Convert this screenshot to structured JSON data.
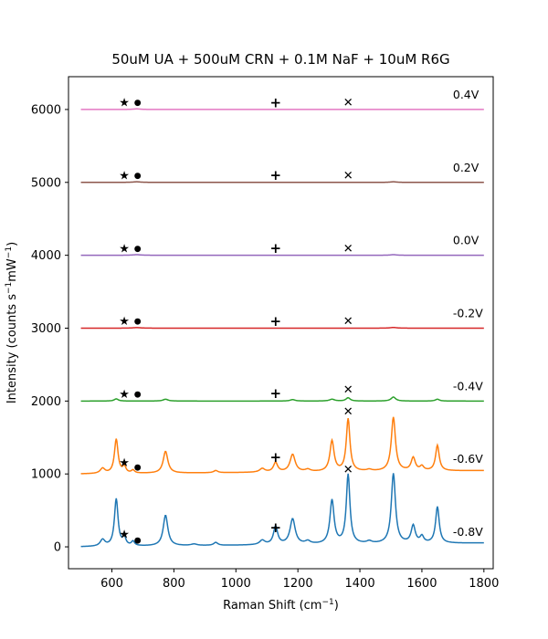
{
  "chart_data": {
    "type": "line",
    "title": "50uM UA + 500uM CRN + 0.1M NaF + 10uM R6G",
    "xlabel": "Raman Shift (cm",
    "xlabel_sup": "−1",
    "xlabel_suffix": ")",
    "ylabel": "Intensity (counts s",
    "ylabel_sup1": "−1",
    "ylabel_mid": "mW",
    "ylabel_sup2": "−1",
    "ylabel_suffix": ")",
    "xlim": [
      460,
      1830
    ],
    "ylim": [
      -300,
      6450
    ],
    "xticks": [
      600,
      800,
      1000,
      1200,
      1400,
      1600,
      1800
    ],
    "yticks": [
      0,
      1000,
      2000,
      3000,
      4000,
      5000,
      6000
    ],
    "grid": false,
    "x_range": [
      500,
      1800
    ],
    "series": [
      {
        "name": "-0.8V",
        "color": "#1f77b4",
        "offset": 0,
        "baseline_slope": 0.04,
        "peaks": [
          [
            570,
            90,
            9
          ],
          [
            614,
            650,
            7
          ],
          [
            640,
            110,
            6
          ],
          [
            668,
            60,
            6
          ],
          [
            773,
            420,
            9
          ],
          [
            865,
            20,
            12
          ],
          [
            935,
            40,
            8
          ],
          [
            1085,
            60,
            10
          ],
          [
            1128,
            250,
            8
          ],
          [
            1183,
            350,
            10
          ],
          [
            1232,
            40,
            10
          ],
          [
            1310,
            600,
            8
          ],
          [
            1362,
            950,
            7
          ],
          [
            1430,
            30,
            10
          ],
          [
            1508,
            960,
            8
          ],
          [
            1572,
            240,
            8
          ],
          [
            1600,
            90,
            7
          ],
          [
            1650,
            500,
            7
          ]
        ]
      },
      {
        "name": "-0.6V",
        "color": "#ff7f0e",
        "offset": 1000,
        "baseline_slope": 0.035,
        "peaks": [
          [
            570,
            70,
            9
          ],
          [
            614,
            470,
            7
          ],
          [
            640,
            90,
            6
          ],
          [
            668,
            40,
            6
          ],
          [
            773,
            300,
            9
          ],
          [
            935,
            30,
            8
          ],
          [
            1085,
            50,
            10
          ],
          [
            1128,
            130,
            8
          ],
          [
            1183,
            240,
            10
          ],
          [
            1232,
            30,
            10
          ],
          [
            1310,
            420,
            8
          ],
          [
            1362,
            720,
            7
          ],
          [
            1430,
            20,
            10
          ],
          [
            1508,
            740,
            8
          ],
          [
            1572,
            180,
            8
          ],
          [
            1600,
            60,
            7
          ],
          [
            1650,
            350,
            7
          ]
        ]
      },
      {
        "name": "-0.4V",
        "color": "#2ca02c",
        "offset": 2000,
        "baseline_slope": 0.0,
        "peaks": [
          [
            614,
            30,
            8
          ],
          [
            773,
            25,
            10
          ],
          [
            1183,
            20,
            10
          ],
          [
            1310,
            25,
            10
          ],
          [
            1362,
            45,
            8
          ],
          [
            1508,
            55,
            9
          ],
          [
            1650,
            25,
            8
          ]
        ]
      },
      {
        "name": "-0.2V",
        "color": "#d62728",
        "offset": 3000,
        "baseline_slope": 0.0,
        "peaks": [
          [
            680,
            8,
            15
          ],
          [
            1508,
            10,
            12
          ]
        ]
      },
      {
        "name": "0.0V",
        "color": "#9467bd",
        "offset": 4000,
        "baseline_slope": 0.0,
        "peaks": [
          [
            680,
            8,
            15
          ],
          [
            1508,
            8,
            12
          ]
        ]
      },
      {
        "name": "0.2V",
        "color": "#8c564b",
        "offset": 5000,
        "baseline_slope": 0.0,
        "peaks": [
          [
            680,
            8,
            15
          ],
          [
            1508,
            8,
            12
          ]
        ]
      },
      {
        "name": "0.4V",
        "color": "#e377c2",
        "offset": 6000,
        "baseline_slope": 0.0,
        "peaks": [
          [
            680,
            8,
            15
          ]
        ]
      }
    ],
    "markers": [
      {
        "symbol": "★",
        "x": 640,
        "y": 6100
      },
      {
        "symbol": "●",
        "x": 683,
        "y": 6100
      },
      {
        "symbol": "+",
        "x": 1128,
        "y": 6100
      },
      {
        "symbol": "✕",
        "x": 1362,
        "y": 6100
      },
      {
        "symbol": "★",
        "x": 640,
        "y": 5100
      },
      {
        "symbol": "●",
        "x": 683,
        "y": 5100
      },
      {
        "symbol": "+",
        "x": 1128,
        "y": 5100
      },
      {
        "symbol": "✕",
        "x": 1362,
        "y": 5100
      },
      {
        "symbol": "★",
        "x": 640,
        "y": 4100
      },
      {
        "symbol": "●",
        "x": 683,
        "y": 4100
      },
      {
        "symbol": "+",
        "x": 1128,
        "y": 4100
      },
      {
        "symbol": "✕",
        "x": 1362,
        "y": 4100
      },
      {
        "symbol": "★",
        "x": 640,
        "y": 3100
      },
      {
        "symbol": "●",
        "x": 683,
        "y": 3100
      },
      {
        "symbol": "+",
        "x": 1128,
        "y": 3100
      },
      {
        "symbol": "✕",
        "x": 1362,
        "y": 3100
      },
      {
        "symbol": "★",
        "x": 640,
        "y": 2100
      },
      {
        "symbol": "●",
        "x": 683,
        "y": 2100
      },
      {
        "symbol": "+",
        "x": 1128,
        "y": 2110
      },
      {
        "symbol": "✕",
        "x": 1362,
        "y": 2160
      },
      {
        "symbol": "★",
        "x": 640,
        "y": 1160
      },
      {
        "symbol": "●",
        "x": 683,
        "y": 1100
      },
      {
        "symbol": "+",
        "x": 1128,
        "y": 1230
      },
      {
        "symbol": "✕",
        "x": 1362,
        "y": 1860
      },
      {
        "symbol": "✕",
        "x": 1362,
        "y": 1070
      },
      {
        "symbol": "★",
        "x": 640,
        "y": 180
      },
      {
        "symbol": "●",
        "x": 683,
        "y": 100
      },
      {
        "symbol": "+",
        "x": 1128,
        "y": 270
      }
    ],
    "voltage_labels": [
      {
        "text": "0.4V",
        "y": 6150
      },
      {
        "text": "0.2V",
        "y": 5150
      },
      {
        "text": "0.0V",
        "y": 4150
      },
      {
        "text": "-0.2V",
        "y": 3150
      },
      {
        "text": "-0.4V",
        "y": 2150
      },
      {
        "text": "-0.6V",
        "y": 1150
      },
      {
        "text": "-0.8V",
        "y": 150
      }
    ],
    "voltage_label_x": 1700
  }
}
